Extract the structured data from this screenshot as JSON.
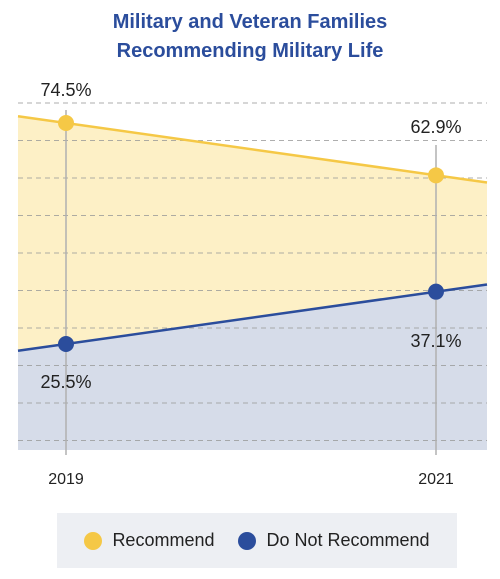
{
  "title_line1": "Military and Veteran Families",
  "title_line2": "Recommending Military Life",
  "colors": {
    "recommend": "#f5c846",
    "recommend_fill": "#fdf0c6",
    "not_recommend": "#2b4d9c",
    "not_recommend_fill": "#d6dce9",
    "title": "#2b4d9c"
  },
  "chart_data": {
    "type": "area",
    "x": [
      "2019",
      "2021"
    ],
    "ylim": [
      0,
      100
    ],
    "series": [
      {
        "name": "Recommend",
        "values": [
          74.5,
          62.9
        ],
        "labels": [
          "74.5%",
          "62.9%"
        ]
      },
      {
        "name": "Do Not Recommend",
        "values": [
          25.5,
          37.1
        ],
        "labels": [
          "25.5%",
          "37.1%"
        ]
      }
    ],
    "legend_position": "bottom",
    "grid": true
  },
  "legend": {
    "recommend": "Recommend",
    "not_recommend": "Do Not Recommend"
  }
}
